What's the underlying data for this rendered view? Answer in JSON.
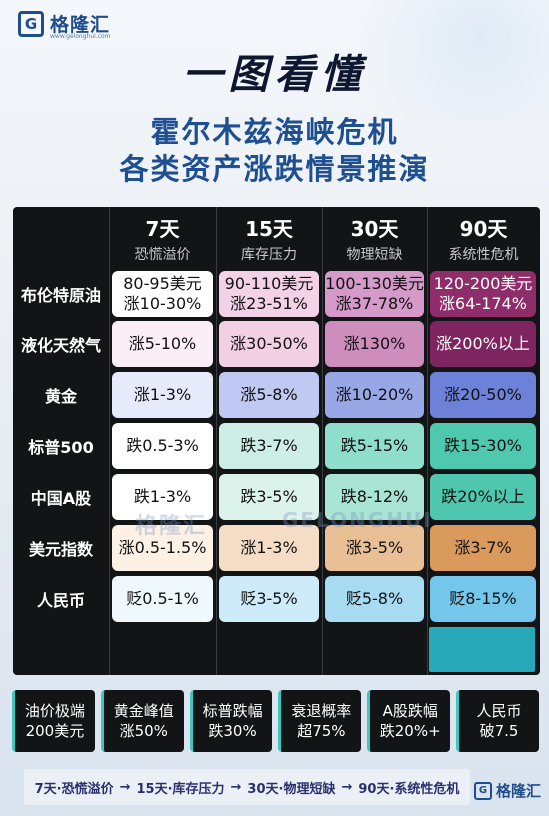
{
  "brand": {
    "mark": "G",
    "name": "格隆汇",
    "site": "www.gelonghui.com"
  },
  "title": {
    "line1": "一图看懂",
    "line2": "霍尔木兹海峡危机",
    "line3": "各类资产涨跌情景推演"
  },
  "columns": [
    {
      "days": "7天",
      "sub": "恐慌溢价"
    },
    {
      "days": "15天",
      "sub": "库存压力"
    },
    {
      "days": "30天",
      "sub": "物理短缺"
    },
    {
      "days": "90天",
      "sub": "系统性危机"
    }
  ],
  "rows": [
    {
      "label": "布伦特原油",
      "cells": [
        {
          "l1": "80-95美元",
          "l2": "涨10-30%",
          "bg": "#ffffff"
        },
        {
          "l1": "90-110美元",
          "l2": "涨23-51%",
          "bg": "#f3d1e6"
        },
        {
          "l1": "100-130美元",
          "l2": "涨37-78%",
          "bg": "#d59ac9"
        },
        {
          "l1": "120-200美元",
          "l2": "涨64-174%",
          "bg": "#8e2d69",
          "dark": true
        }
      ]
    },
    {
      "label": "液化天然气",
      "cells": [
        {
          "l1": "涨5-10%",
          "bg": "#fbeef6"
        },
        {
          "l1": "涨30-50%",
          "bg": "#f3cfe4"
        },
        {
          "l1": "涨130%",
          "bg": "#cf8dbe"
        },
        {
          "l1": "涨200%以上",
          "bg": "#7e2460",
          "dark": true
        }
      ]
    },
    {
      "label": "黄金",
      "cells": [
        {
          "l1": "涨1-3%",
          "bg": "#e6eafa"
        },
        {
          "l1": "涨5-8%",
          "bg": "#bfc9f1"
        },
        {
          "l1": "涨10-20%",
          "bg": "#98a7e6"
        },
        {
          "l1": "涨20-50%",
          "bg": "#6d81d8"
        }
      ]
    },
    {
      "label": "标普500",
      "cells": [
        {
          "l1": "跌0.5-3%",
          "bg": "#ffffff"
        },
        {
          "l1": "跌3-7%",
          "bg": "#cdeee6"
        },
        {
          "l1": "跌5-15%",
          "bg": "#8fddcb"
        },
        {
          "l1": "跌15-30%",
          "bg": "#4fc8b0"
        }
      ]
    },
    {
      "label": "中国A股",
      "cells": [
        {
          "l1": "跌1-3%",
          "bg": "#ffffff"
        },
        {
          "l1": "跌3-5%",
          "bg": "#dcf3ec"
        },
        {
          "l1": "跌8-12%",
          "bg": "#a8e4d3"
        },
        {
          "l1": "跌20%以上",
          "bg": "#4fc7ae"
        }
      ]
    },
    {
      "label": "美元指数",
      "cells": [
        {
          "l1": "涨0.5-1.5%",
          "bg": "#fdf1e6"
        },
        {
          "l1": "涨1-3%",
          "bg": "#f5dcc4"
        },
        {
          "l1": "涨3-5%",
          "bg": "#e9bf95"
        },
        {
          "l1": "涨3-7%",
          "bg": "#d99a5c"
        }
      ]
    },
    {
      "label": "人民币",
      "cells": [
        {
          "l1": "贬0.5-1%",
          "bg": "#eef8fd"
        },
        {
          "l1": "贬3-5%",
          "bg": "#cdebf8"
        },
        {
          "l1": "贬5-8%",
          "bg": "#a6dbf2"
        },
        {
          "l1": "贬8-15%",
          "bg": "#74c6ea"
        }
      ]
    }
  ],
  "summary": [
    {
      "l1": "油价极端",
      "l2": "200美元"
    },
    {
      "l1": "黄金峰值",
      "l2": "涨50%"
    },
    {
      "l1": "标普跌幅",
      "l2": "跌30%"
    },
    {
      "l1": "衰退概率",
      "l2": "超75%"
    },
    {
      "l1": "A股跌幅",
      "l2": "跌20%+"
    },
    {
      "l1": "人民币",
      "l2": "破7.5"
    }
  ],
  "footer": {
    "steps": [
      "7天·恐慌溢价",
      "15天·库存压力",
      "30天·物理短缺",
      "90天·系统性危机"
    ],
    "arrow": "→"
  },
  "watermark": {
    "left": "格隆汇",
    "right": "GELONGHUI"
  }
}
